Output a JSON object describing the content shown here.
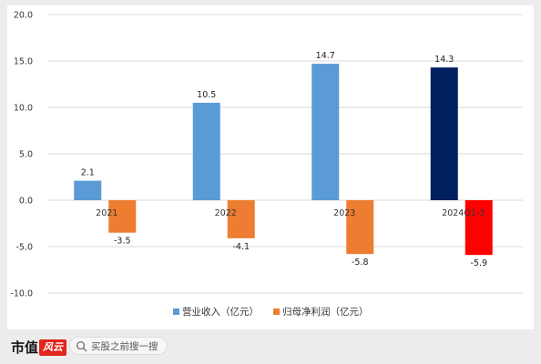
{
  "chart_data": {
    "type": "bar",
    "categories": [
      "2021",
      "2022",
      "2023",
      "2024Q1-3"
    ],
    "series": [
      {
        "name": "营业收入（亿元）",
        "values": [
          2.1,
          10.5,
          14.7,
          14.3
        ],
        "color": "#5b9bd5",
        "highlight_color": "#002060",
        "labels": [
          "2.1",
          "10.5",
          "14.7",
          "14.3"
        ]
      },
      {
        "name": "归母净利润（亿元）",
        "values": [
          -3.5,
          -4.1,
          -5.8,
          -5.9
        ],
        "color": "#ed7d31",
        "highlight_color": "#ff0000",
        "labels": [
          "-3.5",
          "-4.1",
          "-5.8",
          "-5.9"
        ]
      }
    ],
    "highlight_category_index": 3,
    "ylim": [
      -10,
      20
    ],
    "yticks": [
      "20.0",
      "15.0",
      "10.0",
      "5.0",
      "0.0",
      "-5.0",
      "-10.0"
    ],
    "ytick_values": [
      20,
      15,
      10,
      5,
      0,
      -5,
      -10
    ],
    "grid": true,
    "legend_position": "bottom"
  },
  "footer": {
    "brand": "市值",
    "brand_logo": "风云",
    "search_placeholder": "买股之前搜一搜"
  }
}
